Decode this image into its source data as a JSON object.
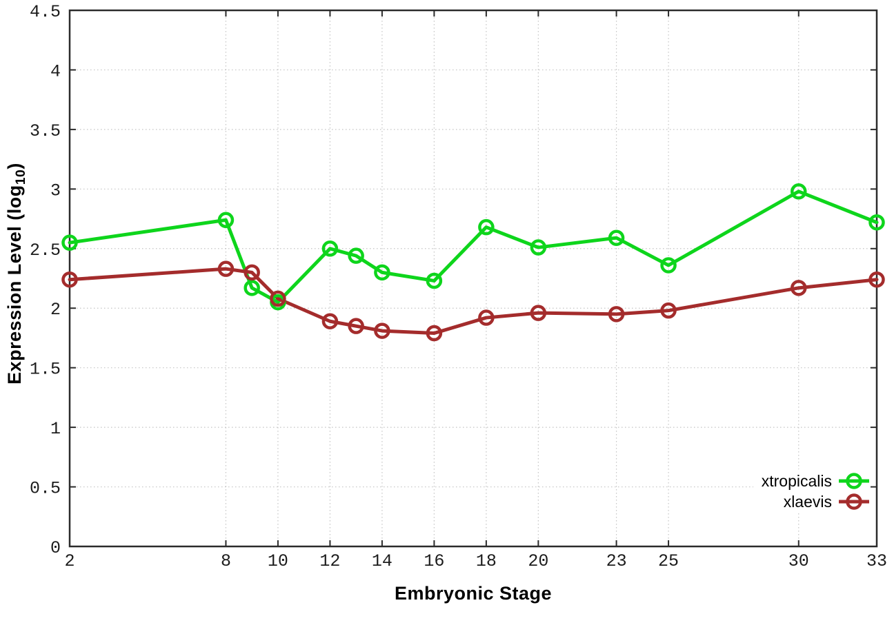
{
  "figure": {
    "background": "#ffffff"
  },
  "chart_data": {
    "type": "line",
    "title": "",
    "xlabel": "Embryonic Stage",
    "ylabel": "Expression Level (log10)",
    "ylabel_parts": {
      "prefix": "Expression Level (log",
      "subscript": "10",
      "suffix": ")"
    },
    "x": [
      2,
      8,
      9,
      10,
      12,
      13,
      14,
      16,
      18,
      20,
      23,
      25,
      30,
      33
    ],
    "series": [
      {
        "name": "xtropicalis",
        "color": "#0ed51c",
        "marker": "open-circle",
        "values": [
          2.55,
          2.74,
          2.17,
          2.05,
          2.5,
          2.44,
          2.3,
          2.23,
          2.68,
          2.51,
          2.59,
          2.36,
          2.98,
          2.72
        ]
      },
      {
        "name": "xlaevis",
        "color": "#a42c2c",
        "marker": "open-circle",
        "values": [
          2.24,
          2.33,
          2.3,
          2.08,
          1.89,
          1.85,
          1.81,
          1.79,
          1.92,
          1.96,
          1.95,
          1.98,
          2.17,
          2.24
        ]
      }
    ],
    "xlim": [
      2,
      33
    ],
    "ylim": [
      0,
      4.5
    ],
    "x_ticks": [
      2,
      8,
      10,
      12,
      14,
      16,
      18,
      20,
      23,
      25,
      30,
      33
    ],
    "x_tick_labels": [
      "2",
      "8",
      "10",
      "12",
      "14",
      "16",
      "18",
      "20",
      "23",
      "25",
      "30",
      "33"
    ],
    "y_ticks": [
      0,
      0.5,
      1,
      1.5,
      2,
      2.5,
      3,
      3.5,
      4,
      4.5
    ],
    "y_tick_labels": [
      "0",
      "0.5",
      "1",
      "1.5",
      "2",
      "2.5",
      "3",
      "3.5",
      "4",
      "4.5"
    ],
    "grid": true,
    "grid_style": "dotted",
    "legend_position": "bottom-right",
    "colors": {
      "grid": "#c3c3c3",
      "border": "#2b2b2b",
      "tick_text": "#1c1c1c",
      "axis_title_text": "#000000"
    }
  }
}
